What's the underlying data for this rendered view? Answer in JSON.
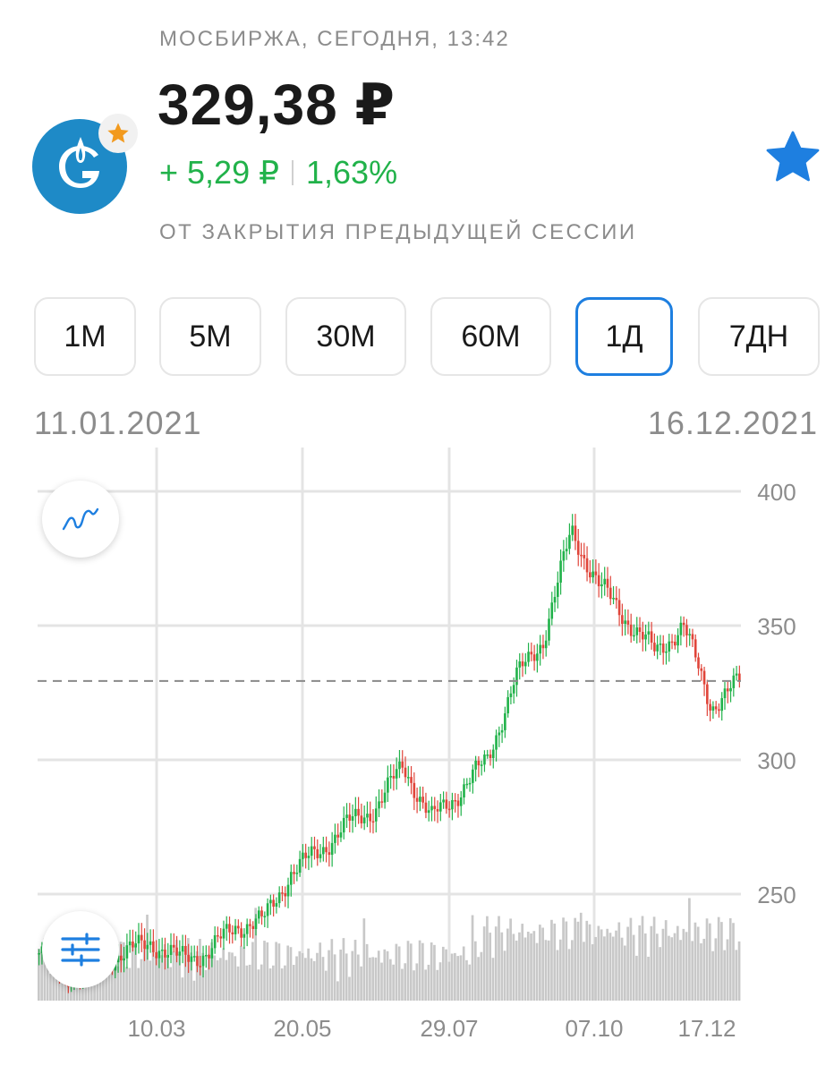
{
  "header": {
    "subtitle": "МОСБИРЖА, СЕГОДНЯ, 13:42",
    "price": "329,38 ₽",
    "change_abs": "+ 5,29 ₽",
    "change_pct": "1,63%",
    "note": "ОТ ЗАКРЫТИЯ ПРЕДЫДУЩЕЙ СЕССИИ",
    "logo_icon": "gazprom-logo-icon",
    "logo_badge_icon": "star-badge-icon",
    "favorite_icon": "star-icon"
  },
  "periods": [
    {
      "label": "1М",
      "active": false
    },
    {
      "label": "5М",
      "active": false
    },
    {
      "label": "30М",
      "active": false
    },
    {
      "label": "60М",
      "active": false
    },
    {
      "label": "1Д",
      "active": true
    },
    {
      "label": "7ДН",
      "active": false
    }
  ],
  "range": {
    "start": "11.01.2021",
    "end": "16.12.2021"
  },
  "colors": {
    "accent": "#1e7fe0",
    "up": "#21b24a",
    "down": "#e0453a",
    "volume": "#c8c8c8",
    "grid": "#e4e4e4",
    "brand": "#1e8ac7"
  },
  "chart_data": {
    "type": "line",
    "x_ticks": [
      "10.03",
      "20.05",
      "29.07",
      "07.10",
      "17.12"
    ],
    "y_ticks": [
      400,
      350,
      300,
      250
    ],
    "ylim": [
      215,
      405
    ],
    "current_price": 329.38,
    "series": [
      {
        "x": [
          "11.01",
          "25.01",
          "08.02",
          "22.02",
          "10.03",
          "25.03",
          "08.04",
          "22.04",
          "06.05",
          "20.05",
          "03.06",
          "17.06",
          "01.07",
          "15.07",
          "29.07",
          "12.08",
          "26.08",
          "09.09",
          "23.09",
          "07.10",
          "21.10",
          "04.11",
          "18.11",
          "02.12",
          "09.12",
          "16.12"
        ],
        "values": [
          228,
          220,
          224,
          228,
          232,
          226,
          228,
          238,
          240,
          258,
          266,
          276,
          282,
          298,
          278,
          288,
          300,
          330,
          345,
          385,
          365,
          352,
          340,
          350,
          320,
          329
        ]
      }
    ]
  },
  "buttons": {
    "chart_type_icon": "line-chart-icon",
    "indicators_icon": "sliders-icon"
  }
}
